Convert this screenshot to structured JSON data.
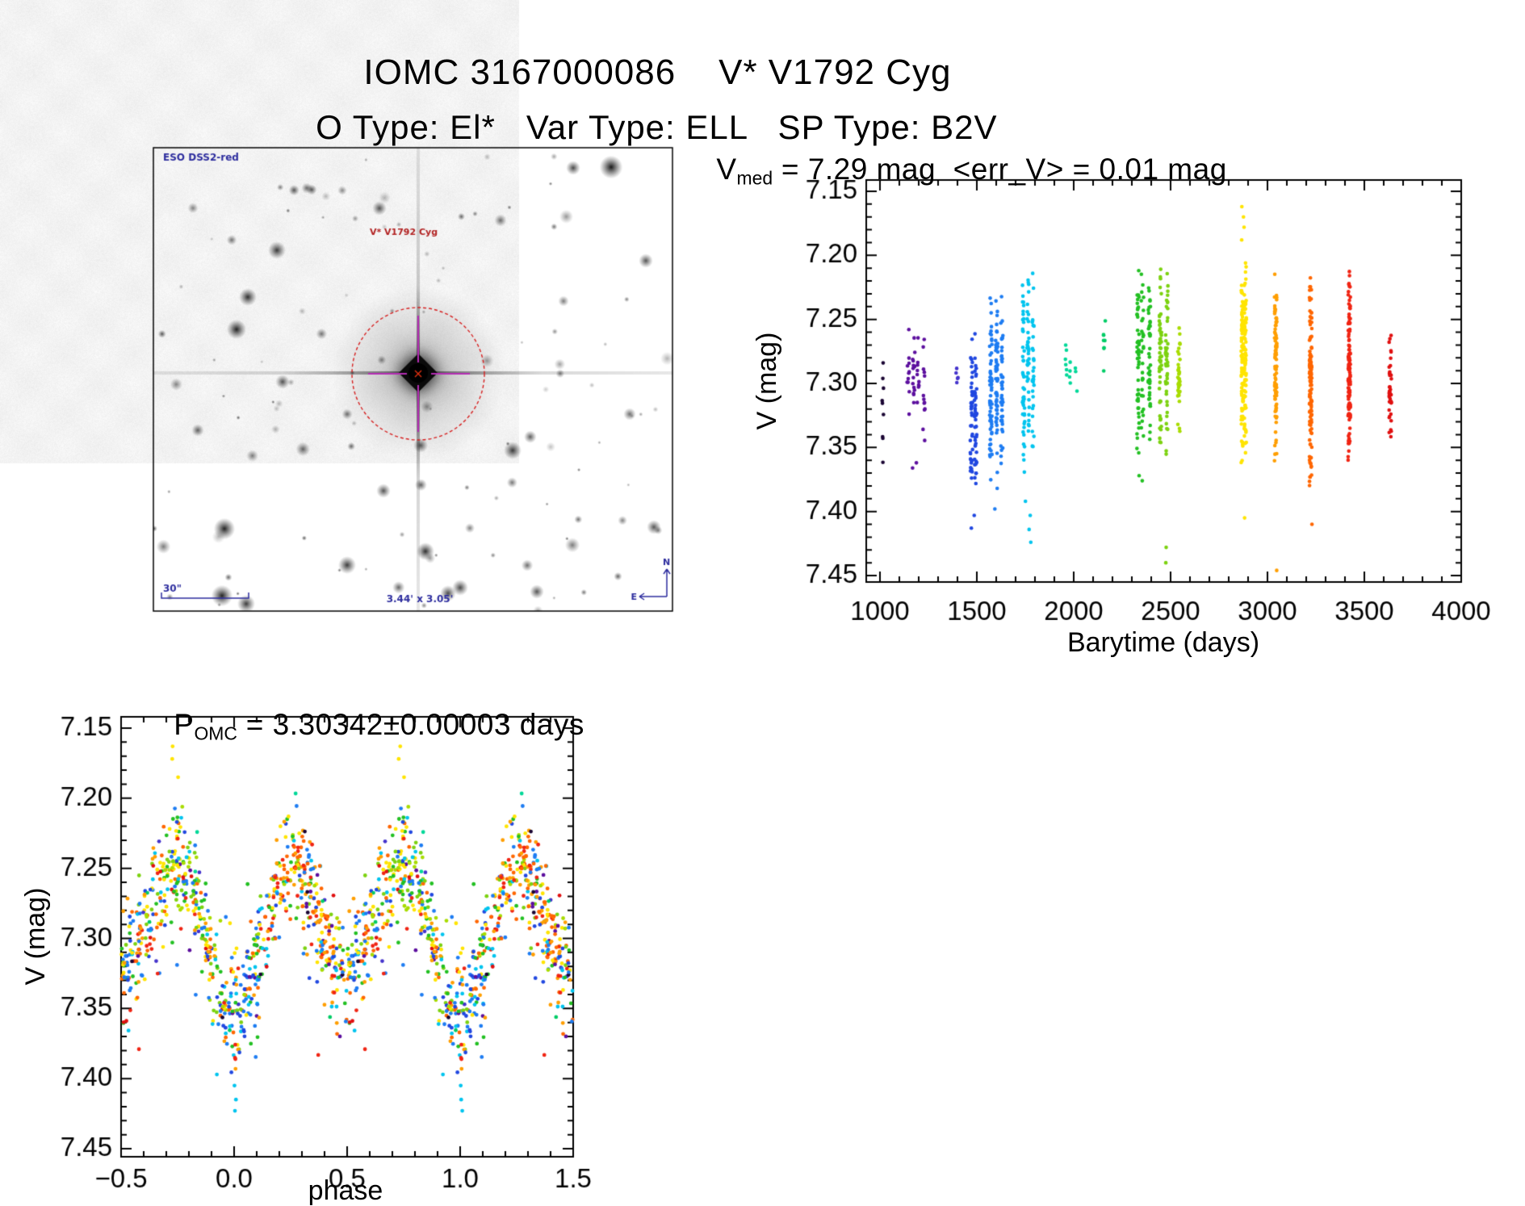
{
  "header": {
    "title": "IOMC 3167000086    V* V1792 Cyg",
    "subtitle": "O Type: El*   Var Type: ELL   SP Type: B2V"
  },
  "sky_image": {
    "survey_label": "ESO DSS2-red",
    "target_label": "V* V1792 Cyg",
    "scale_label": "30\"",
    "fov_label": "3.44' x 3.05'",
    "compass": {
      "north": "N",
      "east": "E"
    },
    "label_color": "#2d2d9e",
    "target_label_color": "#b22222",
    "marker_circle_color": "#d62020",
    "crosshair_color": "#b42cb4"
  },
  "chart_data": [
    {
      "id": "barytime-lightcurve",
      "type": "scatter",
      "title": {
        "base": "V",
        "sub": "med",
        "rest": " = 7.29 mag  <err_V> = 0.01 mag"
      },
      "xlabel": "Barytime (days)",
      "ylabel": "V (mag)",
      "xlim": [
        929,
        4000
      ],
      "ylim": [
        7.141,
        7.455
      ],
      "y_axis_inverted_magnitudes": true,
      "grid": false,
      "legend": "none",
      "xticks": [
        1000,
        1500,
        2000,
        2500,
        3000,
        3500,
        4000
      ],
      "xtick_labels": [
        "1000",
        "1500",
        "2000",
        "2500",
        "3000",
        "3500",
        "4000"
      ],
      "yticks": [
        7.15,
        7.2,
        7.25,
        7.3,
        7.35,
        7.4,
        7.45
      ],
      "ytick_labels": [
        "7.15",
        "7.20",
        "7.25",
        "7.30",
        "7.35",
        "7.40",
        "7.45"
      ],
      "x_minor_step": 100,
      "y_minor_step": 0.01,
      "marker_px": 2.3,
      "series": [
        {
          "t": 1020,
          "t_half": 15,
          "color": "#1a0533",
          "v_min": 7.28,
          "v_max": 7.365,
          "n": 9,
          "v_outliers": []
        },
        {
          "t": 1185,
          "t_half": 60,
          "color": "#5c0f9e",
          "v_min": 7.255,
          "v_max": 7.348,
          "n": 48,
          "v_outliers": [
            7.362,
            7.366
          ]
        },
        {
          "t": 1400,
          "t_half": 10,
          "color": "#4433cc",
          "v_min": 7.282,
          "v_max": 7.303,
          "n": 5,
          "v_outliers": []
        },
        {
          "t": 1483,
          "t_half": 28,
          "color": "#2047e0",
          "v_min": 7.258,
          "v_max": 7.392,
          "n": 85,
          "v_outliers": [
            7.403,
            7.413
          ]
        },
        {
          "t": 1603,
          "t_half": 52,
          "color": "#1d7cf2",
          "v_min": 7.224,
          "v_max": 7.386,
          "n": 160,
          "v_outliers": [
            7.398
          ]
        },
        {
          "t": 1768,
          "t_half": 45,
          "color": "#00c4ee",
          "v_min": 7.205,
          "v_max": 7.378,
          "n": 115,
          "v_outliers": [
            7.392,
            7.403,
            7.414,
            7.424
          ]
        },
        {
          "t": 1985,
          "t_half": 40,
          "color": "#00d898",
          "v_min": 7.249,
          "v_max": 7.312,
          "n": 13,
          "v_outliers": []
        },
        {
          "t": 2163,
          "t_half": 18,
          "color": "#00cc66",
          "v_min": 7.235,
          "v_max": 7.302,
          "n": 8,
          "v_outliers": []
        },
        {
          "t": 2358,
          "t_half": 52,
          "color": "#22c022",
          "v_min": 7.201,
          "v_max": 7.358,
          "n": 120,
          "v_outliers": [
            7.372,
            7.376
          ]
        },
        {
          "t": 2462,
          "t_half": 38,
          "color": "#7cd210",
          "v_min": 7.208,
          "v_max": 7.372,
          "n": 100,
          "v_outliers": [
            7.428,
            7.44
          ]
        },
        {
          "t": 2543,
          "t_half": 18,
          "color": "#a8dc00",
          "v_min": 7.252,
          "v_max": 7.348,
          "n": 35,
          "v_outliers": []
        },
        {
          "t": 2878,
          "t_half": 24,
          "color": "#ffe400",
          "v_min": 7.195,
          "v_max": 7.368,
          "n": 160,
          "v_outliers": [
            7.162,
            7.17,
            7.178,
            7.188,
            7.405
          ]
        },
        {
          "t": 3040,
          "t_half": 16,
          "color": "#ff9e00",
          "v_min": 7.205,
          "v_max": 7.368,
          "n": 90,
          "v_outliers": [
            7.446
          ]
        },
        {
          "t": 3225,
          "t_half": 22,
          "color": "#ff6600",
          "v_min": 7.21,
          "v_max": 7.386,
          "n": 130,
          "v_outliers": [
            7.41
          ]
        },
        {
          "t": 3420,
          "t_half": 18,
          "color": "#f02413",
          "v_min": 7.205,
          "v_max": 7.366,
          "n": 115,
          "v_outliers": []
        },
        {
          "t": 3632,
          "t_half": 12,
          "color": "#e01010",
          "v_min": 7.255,
          "v_max": 7.356,
          "n": 38,
          "v_outliers": []
        }
      ]
    },
    {
      "id": "phase-folded-lightcurve",
      "type": "scatter",
      "title": {
        "base": "P",
        "sub": "OMC",
        "rest": " = 3.30342±0.00003 days"
      },
      "xlabel": "phase",
      "ylabel": "V (mag)",
      "xlim": [
        -0.5,
        1.5
      ],
      "ylim": [
        7.141,
        7.455
      ],
      "y_axis_inverted_magnitudes": true,
      "grid": false,
      "legend": "none",
      "xticks": [
        -0.5,
        0.0,
        0.5,
        1.0,
        1.5
      ],
      "xtick_labels": [
        "−0.5",
        "0.0",
        "0.5",
        "1.0",
        "1.5"
      ],
      "yticks": [
        7.15,
        7.2,
        7.25,
        7.3,
        7.35,
        7.4,
        7.45
      ],
      "ytick_labels": [
        "7.15",
        "7.20",
        "7.25",
        "7.30",
        "7.35",
        "7.40",
        "7.45"
      ],
      "x_minor_step": 0.1,
      "y_minor_step": 0.01,
      "marker_px": 2.4,
      "fold_model": {
        "v_mean": 7.292,
        "ellipsoidal_amplitude": 0.044,
        "unequal_minima_amplitude": 0.012,
        "scatter_sigma": 0.019,
        "faint_tail_fraction": 0.05,
        "n_epochs": 800,
        "plotted_twice_per_point": true
      },
      "outlier_groups": [
        {
          "phase": 0.005,
          "v": [
            7.405,
            7.415,
            7.423
          ],
          "color": "#00c4ee"
        },
        {
          "phase": -0.268,
          "v": [
            7.163,
            7.172
          ],
          "color": "#ffe400"
        },
        {
          "phase": -0.245,
          "v": [
            7.185
          ],
          "color": "#ffe400"
        }
      ],
      "palette": [
        {
          "color": "#1a0533",
          "weight": 9
        },
        {
          "color": "#5c0f9e",
          "weight": 45
        },
        {
          "color": "#4433cc",
          "weight": 20
        },
        {
          "color": "#2047e0",
          "weight": 90
        },
        {
          "color": "#1d7cf2",
          "weight": 160
        },
        {
          "color": "#00c4ee",
          "weight": 110
        },
        {
          "color": "#00d898",
          "weight": 12
        },
        {
          "color": "#00cc66",
          "weight": 8
        },
        {
          "color": "#22c022",
          "weight": 120
        },
        {
          "color": "#7cd210",
          "weight": 100
        },
        {
          "color": "#a8dc00",
          "weight": 40
        },
        {
          "color": "#ffe400",
          "weight": 160
        },
        {
          "color": "#ff9e00",
          "weight": 90
        },
        {
          "color": "#ff6600",
          "weight": 130
        },
        {
          "color": "#f02413",
          "weight": 110
        },
        {
          "color": "#e01010",
          "weight": 35
        }
      ]
    }
  ]
}
